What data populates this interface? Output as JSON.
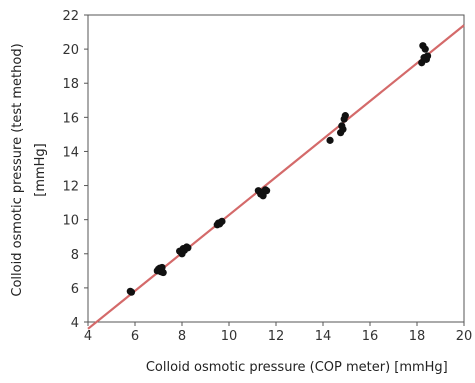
{
  "chart_data": {
    "type": "scatter",
    "title": "",
    "xlabel": "Colloid osmotic pressure (COP meter)",
    "xunit": "[mmHg]",
    "ylabel": "Colloid osmotic pressure (test method)",
    "yunit": "[mmHg]",
    "xlim": [
      4,
      20
    ],
    "ylim": [
      4,
      22
    ],
    "xticks": [
      "4",
      "6",
      "8",
      "10",
      "12",
      "14",
      "16",
      "18",
      "20"
    ],
    "yticks": [
      "4",
      "6",
      "8",
      "10",
      "12",
      "14",
      "16",
      "18",
      "20",
      "22"
    ],
    "grid": false,
    "legend": "none",
    "point_color": "#111111",
    "line_color": "#d46a6a",
    "regression_line": {
      "x": [
        4.0,
        20.0
      ],
      "y": [
        3.6,
        21.4
      ]
    },
    "series": [
      {
        "x": [
          5.8,
          5.85,
          6.95,
          7.0,
          7.05,
          7.1,
          7.15,
          7.2,
          7.9,
          8.0,
          8.05,
          8.1,
          8.2,
          8.25,
          9.5,
          9.55,
          9.6,
          9.65,
          9.7,
          11.25,
          11.35,
          11.4,
          11.45,
          11.5,
          11.55,
          11.6,
          14.3,
          14.75,
          14.8,
          14.85,
          14.9,
          14.95,
          18.2,
          18.25,
          18.3,
          18.35,
          18.4,
          18.45
        ],
        "y": [
          5.8,
          5.75,
          7.0,
          7.1,
          7.15,
          6.95,
          7.2,
          6.9,
          8.15,
          8.0,
          8.3,
          8.2,
          8.4,
          8.35,
          9.7,
          9.8,
          9.75,
          9.85,
          9.9,
          11.7,
          11.5,
          11.6,
          11.4,
          11.65,
          11.75,
          11.7,
          14.65,
          15.1,
          15.5,
          15.3,
          15.9,
          16.1,
          19.2,
          20.2,
          19.5,
          20.0,
          19.4,
          19.6
        ]
      }
    ]
  }
}
